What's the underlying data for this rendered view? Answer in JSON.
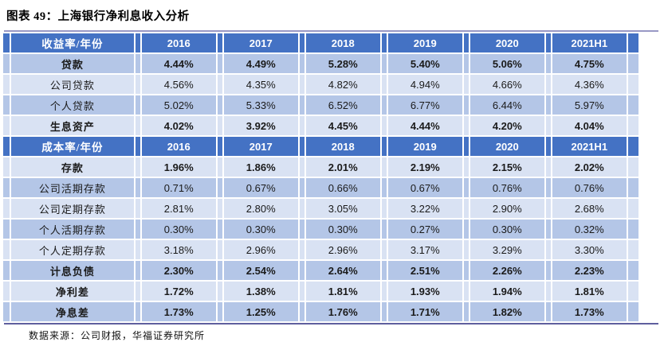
{
  "title": "图表 49：上海银行净利息收入分析",
  "footer": "数据来源：公司财报，华福证券研究所",
  "colors": {
    "header_bg": "#4472c4",
    "band_medium": "#b4c6e7",
    "band_light": "#d9e2f3",
    "top_rule": "#9898c5",
    "bottom_rule": "#5f5f9e",
    "header_text": "#ffffff",
    "body_text": "#1a1a1a"
  },
  "table": {
    "years": [
      "2016",
      "2017",
      "2018",
      "2019",
      "2020",
      "2021H1"
    ],
    "sections": [
      {
        "header_label": "收益率/年份",
        "rows": [
          {
            "label": "贷款",
            "bold": true,
            "band": "m",
            "values": [
              "4.44%",
              "4.49%",
              "5.28%",
              "5.40%",
              "5.06%",
              "4.75%"
            ]
          },
          {
            "label": "公司贷款",
            "bold": false,
            "band": "l",
            "values": [
              "4.56%",
              "4.35%",
              "4.82%",
              "4.94%",
              "4.66%",
              "4.36%"
            ]
          },
          {
            "label": "个人贷款",
            "bold": false,
            "band": "m",
            "values": [
              "5.02%",
              "5.33%",
              "6.52%",
              "6.77%",
              "6.44%",
              "5.97%"
            ]
          },
          {
            "label": "生息资产",
            "bold": true,
            "band": "l",
            "values": [
              "4.02%",
              "3.92%",
              "4.45%",
              "4.44%",
              "4.20%",
              "4.04%"
            ]
          }
        ]
      },
      {
        "header_label": "成本率/年份",
        "rows": [
          {
            "label": "存款",
            "bold": true,
            "band": "l",
            "values": [
              "1.96%",
              "1.86%",
              "2.01%",
              "2.19%",
              "2.15%",
              "2.02%"
            ]
          },
          {
            "label": "公司活期存款",
            "bold": false,
            "band": "m",
            "values": [
              "0.71%",
              "0.67%",
              "0.66%",
              "0.67%",
              "0.76%",
              "0.76%"
            ]
          },
          {
            "label": "公司定期存款",
            "bold": false,
            "band": "l",
            "values": [
              "2.81%",
              "2.80%",
              "3.05%",
              "3.22%",
              "2.90%",
              "2.68%"
            ]
          },
          {
            "label": "个人活期存款",
            "bold": false,
            "band": "m",
            "values": [
              "0.30%",
              "0.30%",
              "0.30%",
              "0.27%",
              "0.30%",
              "0.32%"
            ]
          },
          {
            "label": "个人定期存款",
            "bold": false,
            "band": "l",
            "values": [
              "3.18%",
              "2.96%",
              "2.96%",
              "3.17%",
              "3.29%",
              "3.30%"
            ]
          },
          {
            "label": "计息负债",
            "bold": true,
            "band": "m",
            "values": [
              "2.30%",
              "2.54%",
              "2.64%",
              "2.51%",
              "2.26%",
              "2.23%"
            ]
          },
          {
            "label": "净利差",
            "bold": true,
            "band": "l",
            "values": [
              "1.72%",
              "1.38%",
              "1.81%",
              "1.93%",
              "1.94%",
              "1.81%"
            ]
          },
          {
            "label": "净息差",
            "bold": true,
            "band": "m",
            "values": [
              "1.73%",
              "1.25%",
              "1.76%",
              "1.71%",
              "1.82%",
              "1.73%"
            ]
          }
        ]
      }
    ]
  }
}
